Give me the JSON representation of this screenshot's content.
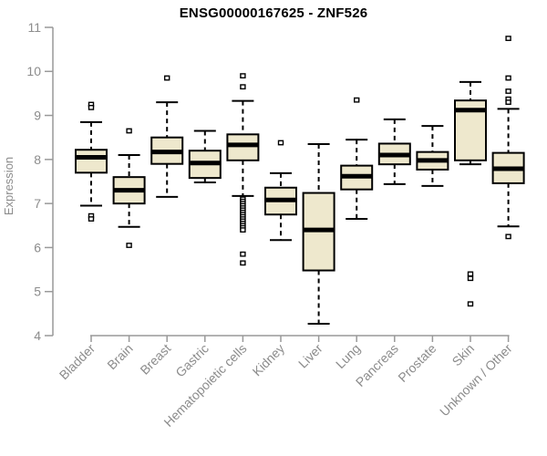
{
  "chart_data": {
    "type": "boxplot",
    "title": "ENSG00000167625 - ZNF526",
    "xlabel": "",
    "ylabel": "Expression",
    "ylim": [
      4,
      11
    ],
    "yticks": [
      4,
      5,
      6,
      7,
      8,
      9,
      10,
      11
    ],
    "grid": false,
    "legend": "none",
    "colors": {
      "box_fill": "#EEE8CD",
      "box_stroke": "#000000",
      "axis_line": "#999999",
      "tick_text": "#8C8C8C",
      "title_text": "#000000",
      "background": "#FFFFFF"
    },
    "categories": [
      "Bladder",
      "Brain",
      "Breast",
      "Gastric",
      "Hematopoietic cells",
      "Kidney",
      "Liver",
      "Lung",
      "Pancreas",
      "Prostate",
      "Skin",
      "Unknown / Other"
    ],
    "series": [
      {
        "name": "Bladder",
        "low": 6.95,
        "q1": 7.7,
        "median": 8.05,
        "q3": 8.22,
        "high": 8.85,
        "outliers": [
          9.25,
          9.18,
          6.72,
          6.65
        ]
      },
      {
        "name": "Brain",
        "low": 6.47,
        "q1": 7.0,
        "median": 7.3,
        "q3": 7.6,
        "high": 8.1,
        "outliers": [
          8.65,
          6.05
        ]
      },
      {
        "name": "Breast",
        "low": 7.15,
        "q1": 7.9,
        "median": 8.17,
        "q3": 8.5,
        "high": 9.3,
        "outliers": [
          9.85
        ]
      },
      {
        "name": "Gastric",
        "low": 7.48,
        "q1": 7.58,
        "median": 7.92,
        "q3": 8.2,
        "high": 8.65,
        "outliers": []
      },
      {
        "name": "Hematopoietic cells",
        "low": 7.17,
        "q1": 7.98,
        "median": 8.33,
        "q3": 8.57,
        "high": 9.33,
        "outliers": [
          9.9,
          9.65,
          7.1,
          7.05,
          7.0,
          6.95,
          6.9,
          6.85,
          6.8,
          6.75,
          6.7,
          6.65,
          6.6,
          6.55,
          6.5,
          6.45,
          6.4,
          5.85,
          5.65
        ]
      },
      {
        "name": "Kidney",
        "low": 6.17,
        "q1": 6.75,
        "median": 7.08,
        "q3": 7.36,
        "high": 7.69,
        "outliers": [
          8.38
        ]
      },
      {
        "name": "Liver",
        "low": 4.27,
        "q1": 5.48,
        "median": 6.4,
        "q3": 7.24,
        "high": 8.35,
        "outliers": []
      },
      {
        "name": "Lung",
        "low": 6.65,
        "q1": 7.32,
        "median": 7.62,
        "q3": 7.86,
        "high": 8.45,
        "outliers": [
          9.35
        ]
      },
      {
        "name": "Pancreas",
        "low": 7.44,
        "q1": 7.89,
        "median": 8.1,
        "q3": 8.36,
        "high": 8.91,
        "outliers": []
      },
      {
        "name": "Prostate",
        "low": 7.4,
        "q1": 7.77,
        "median": 7.98,
        "q3": 8.17,
        "high": 8.76,
        "outliers": []
      },
      {
        "name": "Skin",
        "low": 7.89,
        "q1": 7.98,
        "median": 9.12,
        "q3": 9.34,
        "high": 9.76,
        "outliers": [
          5.4,
          5.3,
          4.72
        ]
      },
      {
        "name": "Unknown / Other",
        "low": 6.48,
        "q1": 7.46,
        "median": 7.79,
        "q3": 8.15,
        "high": 9.15,
        "outliers": [
          10.75,
          9.85,
          9.55,
          9.37,
          9.3,
          6.25
        ]
      }
    ]
  }
}
